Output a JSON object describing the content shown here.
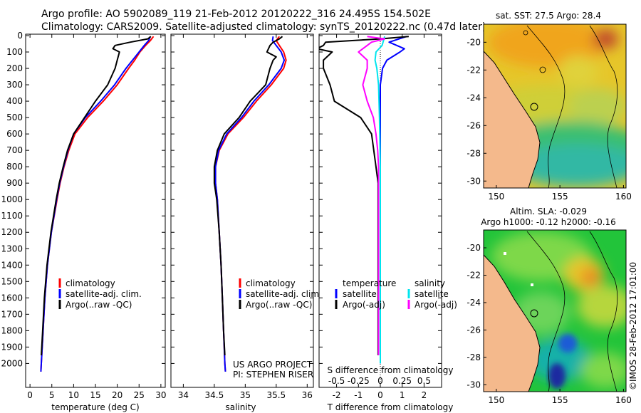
{
  "header": {
    "line1": "Argo profile: AO 5902089_119 21-Feb-2012 20120222_316 24.495S 154.502E",
    "line2": "Climatology: CARS2009. Satellite-adjusted climatology: synTS_20120222.nc (0.47d later)"
  },
  "colors": {
    "climatology": "#ff0000",
    "satellite": "#0000ff",
    "argo": "#000000",
    "sat_diff_s": "#00e5ee",
    "argo_diff_s": "#ff00ff",
    "land": "#f4b98c"
  },
  "chart_data": [
    {
      "type": "line",
      "name": "temperature-panel",
      "xlabel": "temperature (deg C)",
      "xlim": [
        -1,
        31
      ],
      "xticks": [
        0,
        5,
        10,
        15,
        20,
        25,
        30
      ],
      "xtick_labels": [
        "0",
        "5",
        "10",
        "15",
        "20",
        "25",
        "30"
      ],
      "ylim": [
        2100,
        0
      ],
      "yticks": [
        0,
        100,
        200,
        300,
        400,
        500,
        600,
        700,
        800,
        900,
        1000,
        1100,
        1200,
        1300,
        1400,
        1500,
        1600,
        1700,
        1800,
        1900,
        2000
      ],
      "ytick_labels": [
        "0",
        "100",
        "200",
        "300",
        "400",
        "500",
        "600",
        "700",
        "800",
        "900",
        "1000",
        "1100",
        "1200",
        "1300",
        "1400",
        "1500",
        "1600",
        "1700",
        "1800",
        "1900",
        "2000"
      ],
      "legend": [
        "climatology",
        "satellite-adj. clim.",
        "Argo(..raw -QC)"
      ],
      "series": [
        {
          "name": "climatology",
          "color": "red",
          "depth": [
            5,
            30,
            60,
            100,
            150,
            200,
            300,
            400,
            500,
            600,
            700,
            800,
            900,
            1000,
            1200,
            1400,
            1600,
            1800,
            2000,
            2050
          ],
          "values": [
            28.3,
            27.6,
            26.5,
            25.2,
            24.0,
            22.6,
            20.0,
            16.8,
            13.2,
            10.3,
            8.9,
            7.8,
            6.9,
            6.2,
            4.9,
            4.0,
            3.4,
            3.0,
            2.6,
            2.5
          ]
        },
        {
          "name": "satellite-adj. clim.",
          "color": "blue",
          "depth": [
            5,
            30,
            60,
            100,
            150,
            200,
            300,
            400,
            500,
            600,
            700,
            800,
            900,
            1000,
            1200,
            1400,
            1600,
            1800,
            2000,
            2050
          ],
          "values": [
            27.6,
            27.2,
            26.2,
            25.0,
            23.5,
            22.0,
            19.4,
            16.2,
            12.7,
            10.0,
            8.7,
            7.7,
            6.8,
            6.1,
            4.9,
            4.0,
            3.4,
            3.0,
            2.6,
            2.5
          ]
        },
        {
          "name": "Argo(..raw -QC)",
          "color": "black",
          "depth": [
            5,
            20,
            40,
            60,
            80,
            100,
            150,
            200,
            300,
            400,
            500,
            600,
            700,
            800,
            900,
            1000,
            1200,
            1400,
            1600,
            1800,
            1950
          ],
          "values": [
            27.7,
            27.0,
            23.0,
            19.5,
            19.0,
            20.5,
            20.0,
            19.5,
            17.8,
            15.0,
            12.5,
            10.0,
            8.6,
            7.6,
            6.7,
            6.0,
            4.8,
            3.9,
            3.3,
            2.9,
            2.6
          ]
        }
      ]
    },
    {
      "type": "line",
      "name": "salinity-panel",
      "xlabel": "salinity",
      "xlim": [
        33.8,
        36.1
      ],
      "xticks": [
        34,
        34.5,
        35,
        35.5,
        36
      ],
      "xtick_labels": [
        "34",
        "34.5",
        "35",
        "35.5",
        "36"
      ],
      "ylim": [
        2100,
        0
      ],
      "legend": [
        "climatology",
        "satellite-adj. clim.",
        "Argo(..raw -QC)"
      ],
      "annotations": [
        "US ARGO PROJECT",
        "PI: STEPHEN RISER"
      ],
      "series": [
        {
          "name": "climatology",
          "color": "red",
          "depth": [
            5,
            30,
            60,
            100,
            150,
            200,
            300,
            400,
            500,
            600,
            700,
            800,
            900,
            1000,
            1200,
            1400,
            1600,
            1800,
            2000,
            2050
          ],
          "values": [
            35.55,
            35.5,
            35.55,
            35.62,
            35.66,
            35.62,
            35.42,
            35.18,
            34.97,
            34.72,
            34.58,
            34.52,
            34.52,
            34.55,
            34.58,
            34.61,
            34.63,
            34.65,
            34.67,
            34.68
          ]
        },
        {
          "name": "satellite-adj. clim.",
          "color": "blue",
          "depth": [
            5,
            30,
            60,
            100,
            150,
            200,
            300,
            400,
            500,
            600,
            700,
            800,
            900,
            1000,
            1200,
            1400,
            1600,
            1800,
            2000,
            2050
          ],
          "values": [
            35.45,
            35.44,
            35.5,
            35.58,
            35.63,
            35.58,
            35.38,
            35.14,
            34.94,
            34.7,
            34.57,
            34.52,
            34.52,
            34.55,
            34.58,
            34.61,
            34.63,
            34.65,
            34.67,
            34.68
          ]
        },
        {
          "name": "Argo(..raw -QC)",
          "color": "black",
          "depth": [
            5,
            20,
            40,
            60,
            100,
            130,
            150,
            200,
            300,
            400,
            500,
            600,
            700,
            800,
            900,
            1000,
            1200,
            1400,
            1600,
            1800,
            1950
          ],
          "values": [
            35.6,
            35.55,
            35.45,
            35.4,
            35.35,
            35.5,
            35.45,
            35.4,
            35.33,
            35.08,
            34.9,
            34.66,
            34.55,
            34.5,
            34.5,
            34.54,
            34.58,
            34.61,
            34.63,
            34.65,
            34.67
          ]
        }
      ]
    },
    {
      "type": "line",
      "name": "difference-panel",
      "xlabel": "T difference from climatology",
      "xlabel_top": "S difference from climatology",
      "xlim": [
        -2.8,
        2.8
      ],
      "xticks": [
        -2,
        -1,
        0,
        1,
        2
      ],
      "xtick_labels": [
        "-2",
        "-1",
        "0",
        "1",
        "2"
      ],
      "s_xticks": [
        -0.5,
        -0.25,
        0,
        0.25,
        0.5
      ],
      "s_xtick_labels": [
        "-0.5",
        "-0.25",
        "0",
        "0.25",
        "0.5"
      ],
      "ylim": [
        2100,
        0
      ],
      "legend_left_title": "temperature",
      "legend_right_title": "salinity",
      "legend_left": [
        "satellite",
        "Argo(-adj)"
      ],
      "legend_right": [
        "satellite",
        "Argo(-adj)"
      ],
      "series": [
        {
          "name": "T satellite",
          "color": "blue",
          "depth": [
            5,
            40,
            80,
            100,
            150,
            200,
            300,
            500,
            800,
            1000,
            1500,
            2000
          ],
          "values": [
            1.2,
            0.4,
            1.1,
            0.9,
            0.3,
            0.1,
            0.0,
            0.0,
            0.0,
            0.0,
            0.0,
            0.0
          ]
        },
        {
          "name": "T Argo(-adj)",
          "color": "black",
          "depth": [
            5,
            20,
            40,
            60,
            80,
            100,
            150,
            200,
            300,
            400,
            500,
            600,
            700,
            800,
            900,
            1000,
            1200,
            1500,
            1800,
            1950
          ],
          "values": [
            1.3,
            0.0,
            -2.5,
            -2.6,
            -2.9,
            -2.2,
            -2.6,
            -2.6,
            -2.3,
            -2.1,
            -0.9,
            -0.4,
            -0.3,
            -0.2,
            -0.1,
            -0.1,
            -0.1,
            -0.1,
            -0.1,
            -0.1
          ]
        },
        {
          "name": "S satellite",
          "color": "cyan",
          "depth": [
            5,
            60,
            100,
            150,
            200,
            300,
            500,
            800,
            1000,
            2000
          ],
          "values": [
            0.05,
            0.02,
            -0.05,
            -0.06,
            -0.04,
            -0.02,
            -0.01,
            0.0,
            0.0,
            0.0
          ]
        },
        {
          "name": "S Argo(-adj)",
          "color": "magenta",
          "depth": [
            5,
            20,
            40,
            60,
            80,
            100,
            150,
            200,
            300,
            400,
            500,
            600,
            700,
            800,
            1000,
            1500,
            1950
          ],
          "values": [
            -0.15,
            0.05,
            -0.1,
            -0.15,
            -0.2,
            -0.25,
            -0.15,
            -0.15,
            -0.2,
            -0.15,
            -0.08,
            -0.05,
            -0.03,
            -0.02,
            -0.02,
            -0.02,
            -0.02
          ]
        }
      ]
    },
    {
      "type": "heatmap",
      "name": "sst-map",
      "title": "sat. SST: 27.5 Argo: 28.4",
      "xticks": [
        150,
        155,
        160
      ],
      "xtick_labels": [
        "150",
        "155",
        "160"
      ],
      "yticks": [
        -20,
        -22,
        -24,
        -26,
        -28,
        -30
      ],
      "ytick_labels": [
        "-20",
        "-22",
        "-24",
        "-26",
        "-28",
        "-30"
      ],
      "lon_range": [
        149,
        160.2
      ],
      "lat_range": [
        -30.5,
        -18.7
      ],
      "float_position": [
        154.5,
        -24.5
      ]
    },
    {
      "type": "heatmap",
      "name": "sla-map",
      "title_line1": "Altim. SLA: -0.029",
      "title_line2": "Argo h1000: -0.12 h2000: -0.16",
      "xticks": [
        150,
        155,
        160
      ],
      "xtick_labels": [
        "150",
        "155",
        "160"
      ],
      "yticks": [
        -20,
        -22,
        -24,
        -26,
        -28,
        -30
      ],
      "ytick_labels": [
        "-20",
        "-22",
        "-24",
        "-26",
        "-28",
        "-30"
      ],
      "lon_range": [
        149,
        160.2
      ],
      "lat_range": [
        -30.5,
        -18.7
      ],
      "float_position": [
        154.5,
        -24.5
      ]
    }
  ],
  "footer": {
    "credit": "©IMOS 28-Feb-2012 17:01:00"
  }
}
